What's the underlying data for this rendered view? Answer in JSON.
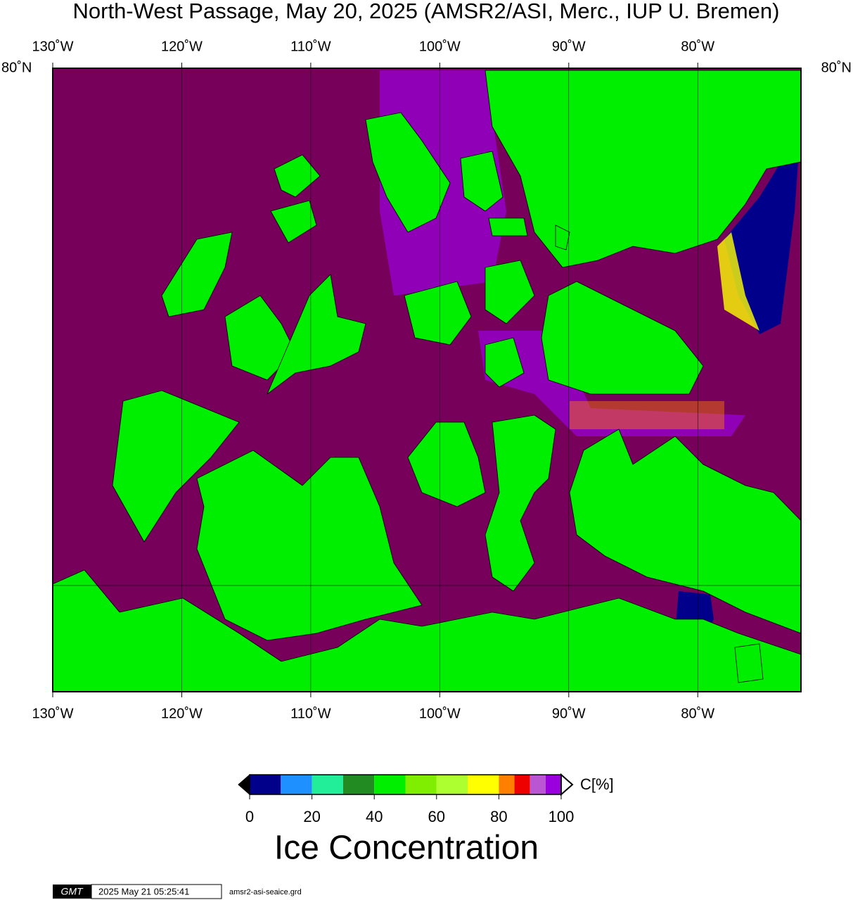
{
  "map": {
    "title": "North-West Passage, May 20, 2025 (AMSR2/ASI, Merc., IUP U. Bremen)",
    "xlim": [
      -130,
      -72
    ],
    "lon_ticks": [
      {
        "value": -130,
        "label": "130˚W"
      },
      {
        "value": -120,
        "label": "120˚W"
      },
      {
        "value": -110,
        "label": "110˚W"
      },
      {
        "value": -100,
        "label": "100˚W"
      },
      {
        "value": -90,
        "label": "90˚W"
      },
      {
        "value": -80,
        "label": "80˚W"
      }
    ],
    "lat_label": "80˚N"
  },
  "colorbar": {
    "title": "Ice Concentration",
    "unit": "C[%]",
    "lim": [
      0,
      100
    ],
    "ticks": [
      0,
      20,
      40,
      60,
      80,
      100
    ],
    "bounds": [
      0,
      10,
      20,
      30,
      40,
      50,
      60,
      70,
      80,
      85,
      90,
      95,
      100
    ],
    "colors": [
      "#00008b",
      "#1e90ff",
      "#22ee9a",
      "#228b22",
      "#00ee00",
      "#7fee00",
      "#adff2f",
      "#ffff00",
      "#ff7f00",
      "#ee0000",
      "#ba55d3",
      "#9a00dd"
    ]
  },
  "footer": {
    "logo": "GMT",
    "timestamp": "2025 May 21 05:25:41",
    "file": "amsr2-asi-seaice.grd"
  }
}
